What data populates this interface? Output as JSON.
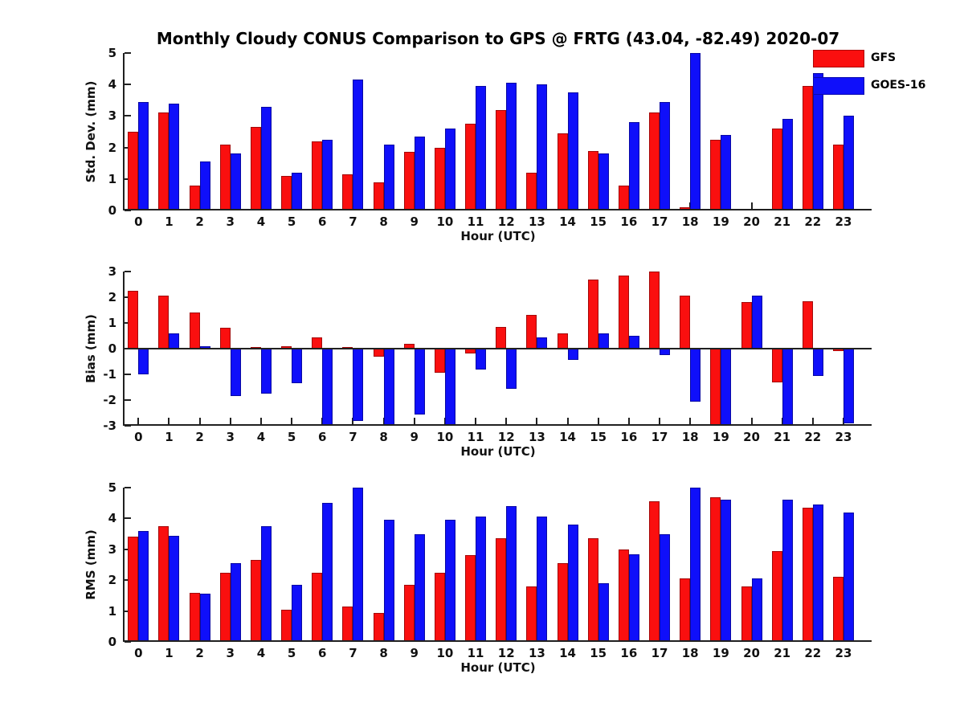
{
  "page": {
    "title": "Monthly Cloudy CONUS Comparison to GPS @ FRTG (43.04, -82.49) 2020-07"
  },
  "colors": {
    "gfs_red": "#fa0f0f",
    "goes16_blue": "#0f0ffa",
    "axis": "#202020"
  },
  "legend": {
    "position": "top-right",
    "items": [
      {
        "label": "GFS",
        "color": "#fa0f0f"
      },
      {
        "label": "GOES-16",
        "color": "#0f0ffa"
      }
    ]
  },
  "chart_data": [
    {
      "type": "bar",
      "title": "Monthly Cloudy CONUS Comparison to GPS @ FRTG (43.04, -82.49) 2020-07",
      "ylabel": "Std. Dev. (mm)",
      "xlabel": "Hour (UTC)",
      "ylim": [
        0,
        5
      ],
      "yticks": [
        0,
        1,
        2,
        3,
        4,
        5
      ],
      "grid": false,
      "categories": [
        "0",
        "1",
        "2",
        "3",
        "4",
        "5",
        "6",
        "7",
        "8",
        "9",
        "10",
        "11",
        "12",
        "13",
        "14",
        "15",
        "16",
        "17",
        "18",
        "19",
        "20",
        "21",
        "22",
        "23"
      ],
      "series": [
        {
          "name": "GFS",
          "color": "#fa0f0f",
          "values": [
            2.5,
            3.1,
            0.8,
            2.1,
            2.65,
            1.1,
            2.2,
            1.15,
            0.9,
            1.85,
            2.0,
            2.75,
            3.2,
            1.2,
            2.45,
            1.9,
            0.8,
            3.1,
            0.1,
            2.25,
            0,
            2.6,
            3.95,
            2.1
          ]
        },
        {
          "name": "GOES-16",
          "color": "#0f0ffa",
          "values": [
            3.45,
            3.4,
            1.55,
            1.8,
            3.3,
            1.2,
            2.25,
            4.15,
            2.1,
            2.35,
            2.6,
            3.95,
            4.05,
            4.0,
            3.75,
            1.8,
            2.8,
            3.45,
            5.0,
            2.4,
            0,
            2.9,
            4.35,
            3.0
          ]
        }
      ]
    },
    {
      "type": "bar",
      "ylabel": "Bias (mm)",
      "xlabel": "Hour (UTC)",
      "ylim": [
        -3,
        3
      ],
      "yticks": [
        -3,
        -2,
        -1,
        0,
        1,
        2,
        3
      ],
      "zero_line": true,
      "grid": false,
      "categories": [
        "0",
        "1",
        "2",
        "3",
        "4",
        "5",
        "6",
        "7",
        "8",
        "9",
        "10",
        "11",
        "12",
        "13",
        "14",
        "15",
        "16",
        "17",
        "18",
        "19",
        "20",
        "21",
        "22",
        "23"
      ],
      "series": [
        {
          "name": "GFS",
          "color": "#fa0f0f",
          "values": [
            2.25,
            2.05,
            1.4,
            0.8,
            0.05,
            0.1,
            0.45,
            0.05,
            -0.3,
            0.2,
            -0.95,
            -0.2,
            0.85,
            1.3,
            0.6,
            2.7,
            2.85,
            3.0,
            2.05,
            -3.0,
            1.8,
            -1.3,
            1.85,
            -0.1
          ]
        },
        {
          "name": "GOES-16",
          "color": "#0f0ffa",
          "values": [
            -1.0,
            0.6,
            0.1,
            -1.85,
            -1.75,
            -1.35,
            -3.0,
            -2.8,
            -3.0,
            -2.55,
            -3.0,
            -0.8,
            -1.55,
            0.45,
            -0.45,
            0.6,
            0.5,
            -0.25,
            -2.05,
            -3.0,
            2.05,
            -3.0,
            -1.05,
            -2.9
          ]
        }
      ]
    },
    {
      "type": "bar",
      "ylabel": "RMS (mm)",
      "xlabel": "Hour (UTC)",
      "ylim": [
        0,
        5
      ],
      "yticks": [
        0,
        1,
        2,
        3,
        4,
        5
      ],
      "grid": false,
      "categories": [
        "0",
        "1",
        "2",
        "3",
        "4",
        "5",
        "6",
        "7",
        "8",
        "9",
        "10",
        "11",
        "12",
        "13",
        "14",
        "15",
        "16",
        "17",
        "18",
        "19",
        "20",
        "21",
        "22",
        "23"
      ],
      "series": [
        {
          "name": "GFS",
          "color": "#fa0f0f",
          "values": [
            3.4,
            3.75,
            1.6,
            2.25,
            2.65,
            1.05,
            2.25,
            1.15,
            0.95,
            1.85,
            2.25,
            2.8,
            3.35,
            1.8,
            2.55,
            3.35,
            3.0,
            4.55,
            2.05,
            4.7,
            1.8,
            2.95,
            4.35,
            2.1
          ]
        },
        {
          "name": "GOES-16",
          "color": "#0f0ffa",
          "values": [
            3.6,
            3.45,
            1.55,
            2.55,
            3.75,
            1.85,
            4.5,
            5.0,
            3.95,
            3.5,
            3.95,
            4.05,
            4.4,
            4.05,
            3.8,
            1.9,
            2.85,
            3.5,
            5.0,
            4.6,
            2.05,
            4.6,
            4.45,
            4.2
          ]
        }
      ]
    }
  ]
}
